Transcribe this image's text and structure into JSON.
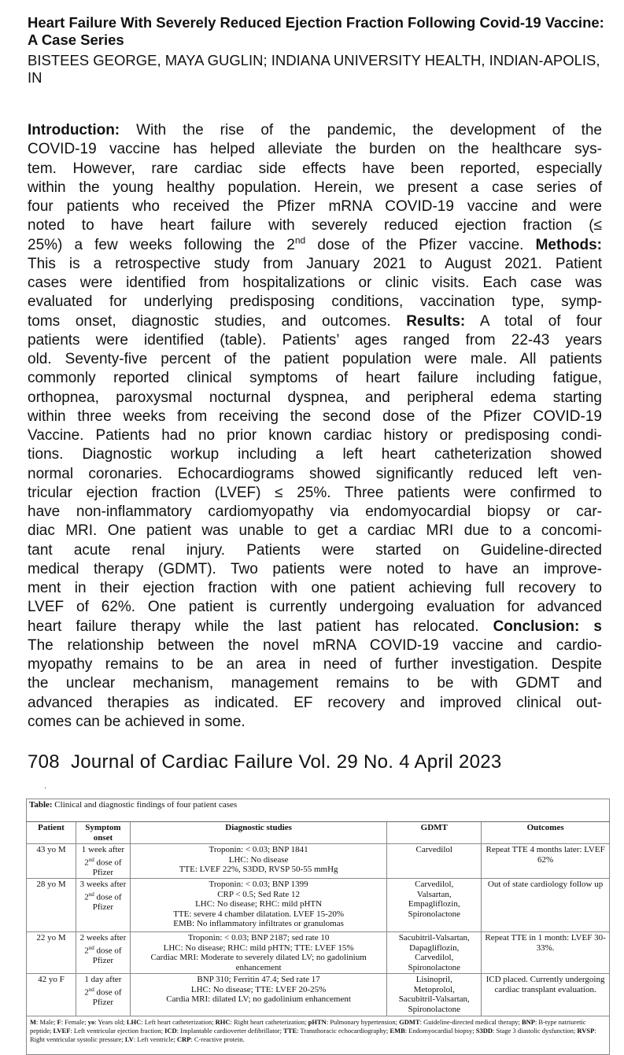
{
  "title": "Heart Failure With Severely Reduced Ejection Fraction Following Covid-19 Vaccine: A Case Series",
  "authors": "BISTEES GEORGE, MAYA GUGLIN; INDIANA UNIVERSITY HEALTH, INDIAN-APOLIS, IN",
  "body_lines": [
    [
      {
        "t": "Introduction:",
        "b": true
      },
      {
        "t": " With the rise of the pandemic, the development of the"
      }
    ],
    [
      {
        "t": "COVID-19 vaccine has helped alleviate the burden on the healthcare sys-"
      }
    ],
    [
      {
        "t": "tem. However, rare cardiac side effects have been reported, especially"
      }
    ],
    [
      {
        "t": "within the young healthy population. Herein, we present a case series of"
      }
    ],
    [
      {
        "t": "four patients who received the Pfizer mRNA COVID-19 vaccine and were"
      }
    ],
    [
      {
        "t": "noted to have heart failure with severely reduced ejection fraction (≤"
      }
    ],
    [
      {
        "t": "25%) a few weeks following the 2"
      },
      {
        "t": "nd",
        "sup": true
      },
      {
        "t": " dose of the Pfizer vaccine. "
      },
      {
        "t": "Methods:",
        "b": true
      }
    ],
    [
      {
        "t": "This is a retrospective study from January 2021 to August 2021. Patient"
      }
    ],
    [
      {
        "t": "cases were identified from hospitalizations or clinic visits. Each case was"
      }
    ],
    [
      {
        "t": "evaluated for underlying predisposing conditions, vaccination type, symp-"
      }
    ],
    [
      {
        "t": "toms onset, diagnostic studies, and outcomes. "
      },
      {
        "t": "Results:",
        "b": true
      },
      {
        "t": " A total of four"
      }
    ],
    [
      {
        "t": "patients were identified (table). Patients’ ages ranged from 22-43 years"
      }
    ],
    [
      {
        "t": "old. Seventy-five percent of the patient population were male. All patients"
      }
    ],
    [
      {
        "t": "commonly reported clinical symptoms of heart failure including fatigue,"
      }
    ],
    [
      {
        "t": "orthopnea, paroxysmal nocturnal dyspnea, and peripheral edema starting"
      }
    ],
    [
      {
        "t": "within three weeks from receiving the second dose of the Pfizer COVID-19"
      }
    ],
    [
      {
        "t": "Vaccine. Patients had no prior known cardiac history or predisposing condi-"
      }
    ],
    [
      {
        "t": "tions. Diagnostic workup including a left heart catheterization showed"
      }
    ],
    [
      {
        "t": "normal coronaries. Echocardiograms showed significantly reduced left ven-"
      }
    ],
    [
      {
        "t": "tricular ejection fraction (LVEF) ≤ 25%. Three patients were confirmed to"
      }
    ],
    [
      {
        "t": "have non-inflammatory cardiomyopathy via endomyocardial biopsy or car-"
      }
    ],
    [
      {
        "t": "diac MRI. One patient was unable to get a cardiac MRI due to a concomi-"
      }
    ],
    [
      {
        "t": "tant acute renal injury. Patients were started on Guideline-directed"
      }
    ],
    [
      {
        "t": "medical therapy (GDMT). Two patients were noted to have an improve-"
      }
    ],
    [
      {
        "t": "ment in their ejection fraction with one patient achieving full recovery to"
      }
    ],
    [
      {
        "t": "LVEF of 62%. One patient is currently undergoing evaluation for advanced"
      }
    ],
    [
      {
        "t": "heart failure therapy while the last patient has relocated. "
      },
      {
        "t": "Conclusion: s",
        "b": true
      }
    ],
    [
      {
        "t": "The relationship between the novel mRNA COVID-19 vaccine and cardio-"
      }
    ],
    [
      {
        "t": "myopathy remains to be an area in need of further investigation. Despite"
      }
    ],
    [
      {
        "t": "the unclear mechanism, management remains to be with GDMT and"
      }
    ],
    [
      {
        "t": "advanced therapies as indicated. EF recovery and improved clinical out-"
      }
    ],
    [
      {
        "t": "comes can be achieved in some."
      }
    ]
  ],
  "journal": {
    "page": "708",
    "name": "Journal of Cardiac Failure Vol. 29 No. 4 April 2023"
  },
  "table": {
    "caption_bold": "Table:",
    "caption": " Clinical and diagnostic findings of four patient cases",
    "headers": [
      "Patient",
      "Symptom onset",
      "Diagnostic studies",
      "GDMT",
      "Outcomes"
    ],
    "rows": [
      {
        "patient": "43 yo M",
        "onset": [
          "1 week after 2",
          "nd",
          " dose of Pfizer"
        ],
        "studies": [
          "Troponin: < 0.03; BNP 1841",
          "LHC: No disease",
          "TTE: LVEF 22%, S3DD, RVSP 50-55 mmHg"
        ],
        "gdmt": [
          "Carvedilol"
        ],
        "outcome": [
          "Repeat TTE 4 months later: LVEF 62%"
        ]
      },
      {
        "patient": "28 yo M",
        "onset": [
          "3 weeks after 2",
          "nd",
          " dose of Pfizer"
        ],
        "studies": [
          "Troponin: < 0.03; BNP 1399",
          "CRP < 0.5; Sed Rate 12",
          "LHC: No disease; RHC: mild pHTN",
          "TTE: severe 4 chamber dilatation. LVEF 15-20%",
          "EMB: No inflammatory infiltrates or granulomas"
        ],
        "gdmt": [
          "Carvedilol,",
          "Valsartan,",
          "Empagliflozin,",
          "Spironolactone"
        ],
        "outcome": [
          "Out of state cardiology follow up"
        ]
      },
      {
        "patient": "22 yo M",
        "onset": [
          "2 weeks after 2",
          "nd",
          " dose of Pfizer"
        ],
        "studies": [
          "Troponin: < 0.03; BNP 2187; sed rate 10",
          "LHC: No disease; RHC: mild pHTN; TTE: LVEF 15%",
          "Cardiac MRI: Moderate to severely dilated LV; no gadolinium enhancement"
        ],
        "gdmt": [
          "Sacubitril-Valsartan,",
          "Dapagliflozin,",
          "Carvedilol,",
          "Spironolactone"
        ],
        "outcome": [
          "Repeat TTE in 1 month: LVEF 30-33%."
        ]
      },
      {
        "patient": "42 yo F",
        "onset": [
          "1 day after 2",
          "nd",
          " dose of Pfizer"
        ],
        "studies": [
          "BNP 310; Ferritin 47.4; Sed rate 17",
          "LHC: No disease; TTE: LVEF 20-25%",
          "Cardia MRI: dilated LV; no gadolinium enhancement"
        ],
        "gdmt": [
          "Lisinopril,",
          "Metoprolol,",
          "Sacubitril-Valsartan,",
          "Spironolactone"
        ],
        "outcome": [
          "ICD placed. Currently undergoing cardiac transplant evaluation."
        ]
      }
    ],
    "footnote": [
      {
        "k": "M",
        "v": ": Male; "
      },
      {
        "k": "F",
        "v": ": Female; "
      },
      {
        "k": "yo",
        "v": ": Years old; "
      },
      {
        "k": "LHC",
        "v": ": Left heart catheterization; "
      },
      {
        "k": "RHC",
        "v": ": Right heart catheterization; "
      },
      {
        "k": "pHTN",
        "v": ": Pulmonary hypertension; "
      },
      {
        "k": "GDMT",
        "v": ": Guideline-directed medical therapy; "
      },
      {
        "k": "BNP",
        "v": ": B-type natriuretic peptide; "
      },
      {
        "k": "LVEF",
        "v": ": Left ventricular ejection fraction; "
      },
      {
        "k": "ICD",
        "v": ": Implantable cardioverter defibrillator; "
      },
      {
        "k": "TTE",
        "v": ": Transthoracic echocardiography; "
      },
      {
        "k": "EMB",
        "v": ": Endomyocardial biopsy; "
      },
      {
        "k": "S3DD",
        "v": ": Stage 3 diastolic dysfunction; "
      },
      {
        "k": "RVSP",
        "v": ": Right ventricular systolic pressure; "
      },
      {
        "k": "LV",
        "v": ": Left ventricle; "
      },
      {
        "k": "CRP",
        "v": ": C-reactive protein."
      }
    ]
  }
}
